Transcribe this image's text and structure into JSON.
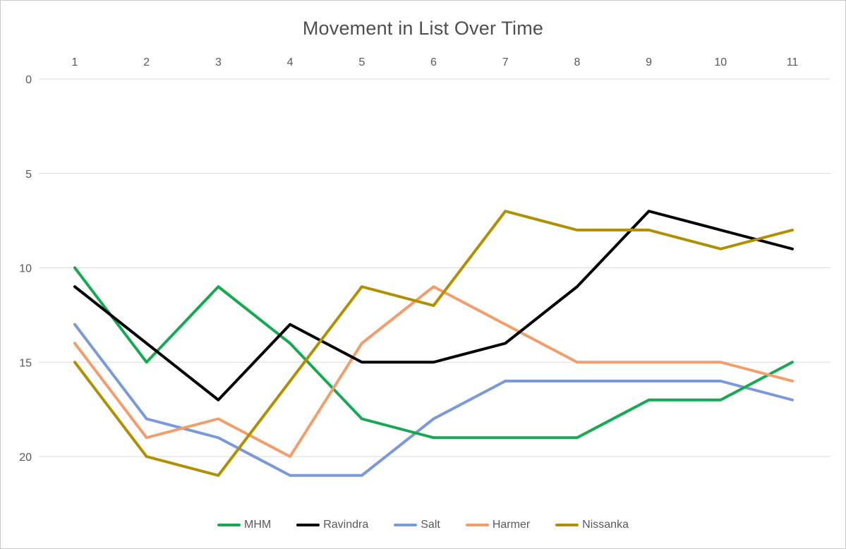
{
  "chart_data": {
    "type": "line",
    "title": "Movement in List Over Time",
    "x": [
      1,
      2,
      3,
      4,
      5,
      6,
      7,
      8,
      9,
      10,
      11
    ],
    "x_axis_position": "top",
    "y_axis_inverted": true,
    "yticks": [
      0,
      5,
      10,
      15,
      20
    ],
    "ylim": [
      0,
      22.5
    ],
    "grid": true,
    "legend_position": "bottom",
    "legend": [
      "MHM",
      "Ravindra",
      "Salt",
      "Harmer",
      "Nissanka"
    ],
    "series": [
      {
        "name": "MHM",
        "color": "#17A952",
        "values": [
          10,
          15,
          11,
          14,
          18,
          19,
          19,
          19,
          17,
          17,
          15
        ]
      },
      {
        "name": "Ravindra",
        "color": "#000000",
        "values": [
          11,
          14,
          17,
          13,
          15,
          15,
          14,
          11,
          7,
          8,
          9
        ]
      },
      {
        "name": "Salt",
        "color": "#7A99D9",
        "values": [
          13,
          18,
          19,
          21,
          21,
          18,
          16,
          16,
          16,
          16,
          17
        ]
      },
      {
        "name": "Harmer",
        "color": "#F09E6C",
        "values": [
          14,
          19,
          18,
          20,
          14,
          11,
          13,
          15,
          15,
          15,
          16
        ]
      },
      {
        "name": "Nissanka",
        "color": "#B18F00",
        "values": [
          15,
          20,
          21,
          16,
          11,
          12,
          7,
          8,
          8,
          9,
          8
        ]
      }
    ],
    "z_order": [
      "Salt",
      "MHM",
      "Harmer",
      "Ravindra",
      "Nissanka"
    ],
    "text_color": "#595959",
    "grid_color": "#D9D9D9"
  }
}
